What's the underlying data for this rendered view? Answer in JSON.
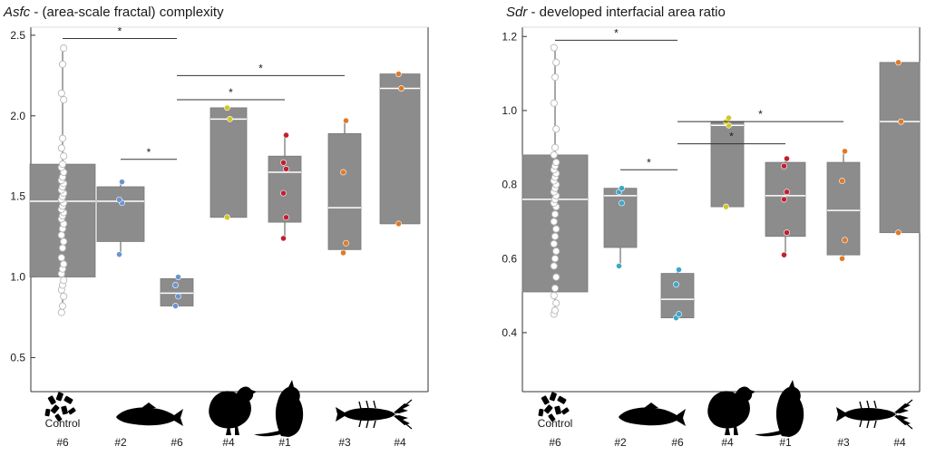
{
  "figure_caption": "",
  "chart_data": [
    {
      "type": "box",
      "title_symbol": "Asfc",
      "title_rest": " - (area-scale fractal) complexity",
      "xlabel": "",
      "ylabel": "",
      "ylim": [
        0.3,
        2.55
      ],
      "yticks": [
        0.5,
        1.0,
        1.5,
        2.0,
        2.5
      ],
      "ytick_labels": [
        "0.5",
        "1.0",
        "1.5",
        "2.0",
        "2.5"
      ],
      "groups": [
        {
          "label_top": "Control",
          "label_bottom": "#6",
          "icon": "grain-pellets-icon",
          "color": "#ffffff",
          "box": {
            "q1": 1.0,
            "median": 1.47,
            "q3": 1.7,
            "whisker_low": 0.78,
            "whisker_high": 2.42
          },
          "points": [
            0.78,
            0.82,
            0.88,
            0.92,
            0.95,
            0.98,
            1.02,
            1.05,
            1.08,
            1.12,
            1.18,
            1.22,
            1.26,
            1.3,
            1.33,
            1.36,
            1.38,
            1.4,
            1.42,
            1.44,
            1.46,
            1.48,
            1.5,
            1.52,
            1.54,
            1.56,
            1.58,
            1.6,
            1.62,
            1.65,
            1.68,
            1.7,
            1.75,
            1.8,
            1.86,
            2.1,
            2.14,
            2.32,
            2.42
          ]
        },
        {
          "label_top": "",
          "label_bottom": "#2",
          "icon": "fish-icon",
          "color": "#6c95cf",
          "box": {
            "q1": 1.22,
            "median": 1.47,
            "q3": 1.56,
            "whisker_low": 1.14,
            "whisker_high": 1.59
          },
          "points": [
            1.14,
            1.46,
            1.48,
            1.59
          ]
        },
        {
          "label_top": "",
          "label_bottom": "#6",
          "icon": "",
          "color": "#6c95cf",
          "box": {
            "q1": 0.82,
            "median": 0.9,
            "q3": 0.99,
            "whisker_low": 0.82,
            "whisker_high": 0.99
          },
          "points": [
            0.82,
            0.88,
            0.95,
            1.0
          ]
        },
        {
          "label_top": "",
          "label_bottom": "#4",
          "icon": "quail-icon",
          "color": "#d2c72a",
          "box": {
            "q1": 1.37,
            "median": 1.98,
            "q3": 2.05,
            "whisker_low": 1.37,
            "whisker_high": 2.05
          },
          "points": [
            1.37,
            1.98,
            2.05
          ]
        },
        {
          "label_top": "",
          "label_bottom": "#1",
          "icon": "rat-icon",
          "color": "#c21f2f",
          "box": {
            "q1": 1.34,
            "median": 1.65,
            "q3": 1.75,
            "whisker_low": 1.24,
            "whisker_high": 1.88
          },
          "points": [
            1.24,
            1.37,
            1.52,
            1.67,
            1.71,
            1.88
          ]
        },
        {
          "label_top": "",
          "label_bottom": "#3",
          "icon": "crayfish-icon",
          "color": "#e07a28",
          "box": {
            "q1": 1.17,
            "median": 1.43,
            "q3": 1.89,
            "whisker_low": 1.15,
            "whisker_high": 1.97
          },
          "points": [
            1.15,
            1.21,
            1.65,
            1.97
          ]
        },
        {
          "label_top": "",
          "label_bottom": "#4",
          "icon": "",
          "color": "#e07a28",
          "box": {
            "q1": 1.33,
            "median": 2.17,
            "q3": 2.26,
            "whisker_low": 1.33,
            "whisker_high": 2.26
          },
          "points": [
            1.33,
            2.17,
            2.26
          ]
        }
      ],
      "significance": [
        {
          "from": 0,
          "to": 2,
          "y": 2.48,
          "label": "*"
        },
        {
          "from": 1,
          "to": 2,
          "y": 1.73,
          "label": "*"
        },
        {
          "from": 2,
          "to": 5,
          "y": 2.25,
          "label": "*"
        },
        {
          "from": 2,
          "to": 4,
          "y": 2.1,
          "label": "*"
        }
      ]
    },
    {
      "type": "box",
      "title_symbol": "Sdr",
      "title_rest": " - developed interfacial area ratio",
      "xlabel": "",
      "ylabel": "",
      "ylim": [
        0.27,
        1.23
      ],
      "yticks": [
        0.4,
        0.6,
        0.8,
        1.0,
        1.2
      ],
      "ytick_labels": [
        "0.4",
        "0.6",
        "0.8",
        "1.0",
        "1.2"
      ],
      "groups": [
        {
          "label_top": "Control",
          "label_bottom": "#6",
          "icon": "grain-pellets-icon",
          "color": "#ffffff",
          "box": {
            "q1": 0.51,
            "median": 0.76,
            "q3": 0.88,
            "whisker_low": 0.45,
            "whisker_high": 1.17
          },
          "points": [
            0.45,
            0.46,
            0.48,
            0.5,
            0.52,
            0.55,
            0.58,
            0.6,
            0.62,
            0.64,
            0.66,
            0.68,
            0.7,
            0.72,
            0.74,
            0.75,
            0.76,
            0.77,
            0.78,
            0.79,
            0.8,
            0.81,
            0.82,
            0.83,
            0.84,
            0.85,
            0.86,
            0.88,
            0.9,
            0.95,
            1.02,
            1.09,
            1.13,
            1.17
          ]
        },
        {
          "label_top": "",
          "label_bottom": "#2",
          "icon": "fish-icon",
          "color": "#3fa6cc",
          "box": {
            "q1": 0.63,
            "median": 0.77,
            "q3": 0.79,
            "whisker_low": 0.58,
            "whisker_high": 0.79
          },
          "points": [
            0.58,
            0.75,
            0.78,
            0.79
          ]
        },
        {
          "label_top": "",
          "label_bottom": "#6",
          "icon": "",
          "color": "#3fa6cc",
          "box": {
            "q1": 0.44,
            "median": 0.49,
            "q3": 0.56,
            "whisker_low": 0.44,
            "whisker_high": 0.57
          },
          "points": [
            0.44,
            0.45,
            0.53,
            0.57
          ]
        },
        {
          "label_top": "",
          "label_bottom": "#4",
          "icon": "quail-icon",
          "color": "#d2c72a",
          "box": {
            "q1": 0.74,
            "median": 0.96,
            "q3": 0.97,
            "whisker_low": 0.74,
            "whisker_high": 0.98
          },
          "points": [
            0.74,
            0.96,
            0.97,
            0.98
          ]
        },
        {
          "label_top": "",
          "label_bottom": "#1",
          "icon": "rat-icon",
          "color": "#c21f2f",
          "box": {
            "q1": 0.66,
            "median": 0.77,
            "q3": 0.86,
            "whisker_low": 0.61,
            "whisker_high": 0.87
          },
          "points": [
            0.61,
            0.67,
            0.76,
            0.78,
            0.85,
            0.87
          ]
        },
        {
          "label_top": "",
          "label_bottom": "#3",
          "icon": "crayfish-icon",
          "color": "#e07a28",
          "box": {
            "q1": 0.61,
            "median": 0.73,
            "q3": 0.86,
            "whisker_low": 0.6,
            "whisker_high": 0.89
          },
          "points": [
            0.6,
            0.65,
            0.81,
            0.89
          ]
        },
        {
          "label_top": "",
          "label_bottom": "#4",
          "icon": "",
          "color": "#e07a28",
          "box": {
            "q1": 0.67,
            "median": 0.97,
            "q3": 1.13,
            "whisker_low": 0.67,
            "whisker_high": 1.13
          },
          "points": [
            0.67,
            0.97,
            1.13
          ]
        }
      ],
      "significance": [
        {
          "from": 0,
          "to": 2,
          "y": 1.19,
          "label": "*"
        },
        {
          "from": 1,
          "to": 2,
          "y": 0.84,
          "label": "*"
        },
        {
          "from": 2,
          "to": 5,
          "y": 0.97,
          "label": "*"
        },
        {
          "from": 2,
          "to": 4,
          "y": 0.91,
          "label": "*"
        }
      ]
    }
  ]
}
